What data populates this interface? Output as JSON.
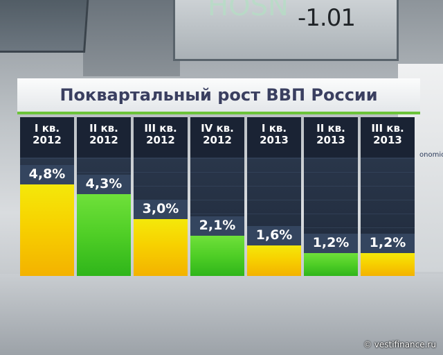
{
  "background": {
    "ticker": "-1.01",
    "ghost": "HOSN",
    "side_text": "onomic"
  },
  "colors": {
    "yellow": "#f7d100",
    "green": "#4fce26",
    "title": "#3a3f60",
    "accent": "#6cc43a"
  },
  "chart_data": {
    "type": "bar",
    "title": "Поквартальный рост ВВП России",
    "xlabel": "",
    "ylabel": "",
    "ylim": [
      0,
      5
    ],
    "categories": [
      [
        "I кв.",
        "2012"
      ],
      [
        "II кв.",
        "2012"
      ],
      [
        "III кв.",
        "2012"
      ],
      [
        "IV кв.",
        "2012"
      ],
      [
        "I кв.",
        "2013"
      ],
      [
        "II кв.",
        "2013"
      ],
      [
        "III кв.",
        "2013"
      ]
    ],
    "values": [
      4.8,
      4.3,
      3.0,
      2.1,
      1.6,
      1.2,
      1.2
    ],
    "labels": [
      "4,8%",
      "4,3%",
      "3,0%",
      "2,1%",
      "1,6%",
      "1,2%",
      "1,2%"
    ],
    "bar_colors": [
      "yellow",
      "green",
      "yellow",
      "green",
      "yellow",
      "green",
      "yellow"
    ]
  },
  "credit": "© vestifinance.ru"
}
